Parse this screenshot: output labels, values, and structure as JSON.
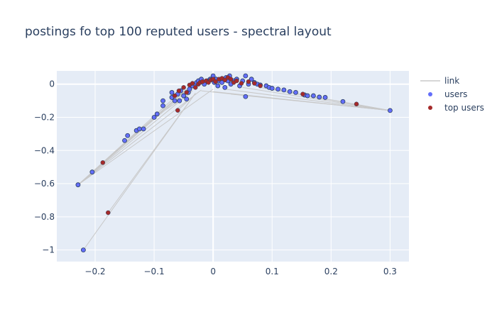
{
  "chart_data": {
    "type": "scatter",
    "title": "postings fo top 100 reputed users - spectral layout",
    "xlabel": "",
    "ylabel": "",
    "xlim": [
      -0.265,
      0.332
    ],
    "ylim": [
      -1.07,
      0.08
    ],
    "x_ticks": [
      -0.2,
      -0.1,
      0,
      0.1,
      0.2,
      0.3
    ],
    "x_tick_labels": [
      "−0.2",
      "−0.1",
      "0",
      "0.1",
      "0.2",
      "0.3"
    ],
    "y_ticks": [
      0,
      -0.2,
      -0.4,
      -0.6,
      -0.8,
      -1
    ],
    "y_tick_labels": [
      "0",
      "−0.2",
      "−0.4",
      "−0.6",
      "−0.8",
      "−1"
    ],
    "grid": true,
    "legend_position": "top-right",
    "colors": {
      "plot_bg": "#e5ecf6",
      "grid": "#ffffff",
      "text": "#2a3f5f",
      "link": "#c8c8c8",
      "users": "#636efa",
      "top_users": "#a52a2a",
      "marker_outline": "#2a3f5f"
    },
    "series": [
      {
        "name": "link",
        "mode": "lines",
        "segments": [
          [
            [
              -0.229,
              -0.607
            ],
            [
              -0.065,
              -0.08
            ]
          ],
          [
            [
              -0.229,
              -0.607
            ],
            [
              -0.05,
              -0.06
            ]
          ],
          [
            [
              -0.229,
              -0.607
            ],
            [
              -0.035,
              -0.04
            ]
          ],
          [
            [
              -0.229,
              -0.607
            ],
            [
              -0.02,
              -0.035
            ]
          ],
          [
            [
              -0.229,
              -0.607
            ],
            [
              0.0,
              -0.03
            ]
          ],
          [
            [
              -0.229,
              -0.607
            ],
            [
              -0.04,
              -0.02
            ]
          ],
          [
            [
              -0.187,
              -0.473
            ],
            [
              -0.045,
              -0.03
            ]
          ],
          [
            [
              -0.22,
              -1.0
            ],
            [
              -0.03,
              -0.055
            ]
          ],
          [
            [
              -0.178,
              -0.775
            ],
            [
              -0.03,
              -0.055
            ]
          ],
          [
            [
              0.3,
              -0.159
            ],
            [
              0.0,
              -0.045
            ]
          ],
          [
            [
              0.3,
              -0.159
            ],
            [
              0.02,
              -0.03
            ]
          ],
          [
            [
              0.3,
              -0.159
            ],
            [
              0.05,
              -0.02
            ]
          ],
          [
            [
              0.3,
              -0.159
            ],
            [
              0.03,
              -0.06
            ]
          ],
          [
            [
              0.3,
              -0.159
            ],
            [
              -0.02,
              -0.04
            ]
          ],
          [
            [
              0.3,
              -0.159
            ],
            [
              0.08,
              -0.02
            ]
          ],
          [
            [
              0.3,
              -0.159
            ],
            [
              0.1,
              -0.03
            ]
          ],
          [
            [
              -0.1,
              -0.2
            ],
            [
              -0.04,
              -0.06
            ]
          ],
          [
            [
              -0.06,
              -0.158
            ],
            [
              -0.03,
              -0.06
            ]
          ]
        ]
      },
      {
        "name": "users",
        "mode": "markers",
        "points": [
          [
            -0.229,
            -0.607
          ],
          [
            -0.22,
            -1.0
          ],
          [
            -0.205,
            -0.53
          ],
          [
            -0.15,
            -0.34
          ],
          [
            -0.145,
            -0.31
          ],
          [
            -0.13,
            -0.28
          ],
          [
            -0.125,
            -0.27
          ],
          [
            -0.118,
            -0.27
          ],
          [
            -0.1,
            -0.2
          ],
          [
            -0.095,
            -0.18
          ],
          [
            -0.085,
            -0.13
          ],
          [
            -0.085,
            -0.1
          ],
          [
            -0.07,
            -0.05
          ],
          [
            -0.07,
            -0.08
          ],
          [
            -0.065,
            -0.1
          ],
          [
            -0.06,
            -0.06
          ],
          [
            -0.057,
            -0.1
          ],
          [
            -0.055,
            -0.04
          ],
          [
            -0.05,
            -0.07
          ],
          [
            -0.045,
            -0.09
          ],
          [
            -0.042,
            -0.05
          ],
          [
            -0.04,
            -0.03
          ],
          [
            -0.035,
            -0.01
          ],
          [
            -0.03,
            0.0
          ],
          [
            -0.028,
            0.01
          ],
          [
            -0.025,
            0.02
          ],
          [
            -0.02,
            0.03
          ],
          [
            -0.015,
            0.0
          ],
          [
            -0.01,
            0.02
          ],
          [
            -0.005,
            0.03
          ],
          [
            0.0,
            0.05
          ],
          [
            0.002,
            0.01
          ],
          [
            0.005,
            0.03
          ],
          [
            0.008,
            -0.01
          ],
          [
            0.01,
            0.02
          ],
          [
            0.015,
            0.01
          ],
          [
            0.02,
            -0.02
          ],
          [
            0.022,
            0.04
          ],
          [
            0.025,
            0.02
          ],
          [
            0.028,
            0.05
          ],
          [
            0.03,
            0.0
          ],
          [
            0.035,
            0.02
          ],
          [
            0.04,
            0.03
          ],
          [
            0.045,
            -0.01
          ],
          [
            0.05,
            0.02
          ],
          [
            0.055,
            0.05
          ],
          [
            0.055,
            -0.075
          ],
          [
            0.06,
            0.0
          ],
          [
            0.065,
            0.03
          ],
          [
            0.07,
            0.01
          ],
          [
            0.075,
            0.0
          ],
          [
            0.08,
            -0.005
          ],
          [
            0.09,
            -0.01
          ],
          [
            0.095,
            -0.02
          ],
          [
            0.1,
            -0.025
          ],
          [
            0.11,
            -0.03
          ],
          [
            0.12,
            -0.035
          ],
          [
            0.13,
            -0.045
          ],
          [
            0.14,
            -0.05
          ],
          [
            0.155,
            -0.065
          ],
          [
            0.16,
            -0.07
          ],
          [
            0.17,
            -0.07
          ],
          [
            0.18,
            -0.078
          ],
          [
            0.19,
            -0.08
          ],
          [
            0.22,
            -0.105
          ],
          [
            0.3,
            -0.159
          ]
        ]
      },
      {
        "name": "top users",
        "mode": "markers",
        "points": [
          [
            -0.187,
            -0.473
          ],
          [
            -0.178,
            -0.775
          ],
          [
            -0.06,
            -0.158
          ],
          [
            -0.065,
            -0.07
          ],
          [
            -0.058,
            -0.04
          ],
          [
            -0.05,
            -0.02
          ],
          [
            -0.045,
            -0.05
          ],
          [
            -0.04,
            -0.005
          ],
          [
            -0.035,
            0.005
          ],
          [
            -0.03,
            -0.02
          ],
          [
            -0.025,
            0.0
          ],
          [
            -0.022,
            0.01
          ],
          [
            -0.018,
            0.015
          ],
          [
            -0.012,
            0.02
          ],
          [
            -0.008,
            0.01
          ],
          [
            -0.004,
            0.025
          ],
          [
            0.0,
            0.03
          ],
          [
            0.004,
            0.015
          ],
          [
            0.01,
            0.03
          ],
          [
            0.015,
            0.035
          ],
          [
            0.02,
            0.025
          ],
          [
            0.025,
            0.04
          ],
          [
            0.03,
            0.03
          ],
          [
            0.035,
            0.01
          ],
          [
            0.04,
            0.02
          ],
          [
            0.048,
            0.005
          ],
          [
            0.06,
            0.015
          ],
          [
            0.07,
            0.005
          ],
          [
            0.08,
            -0.01
          ],
          [
            0.152,
            -0.06
          ],
          [
            0.243,
            -0.12
          ]
        ]
      }
    ]
  }
}
